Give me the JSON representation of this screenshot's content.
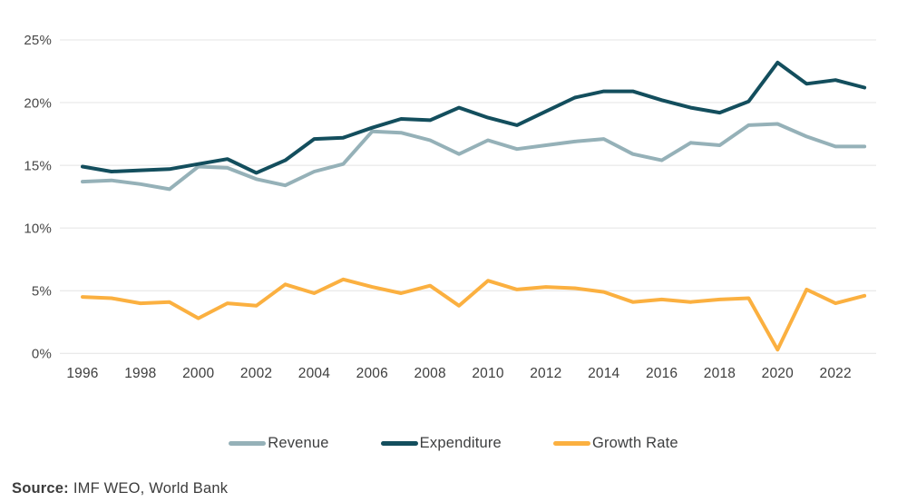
{
  "chart_data": {
    "type": "line",
    "title": "",
    "xlabel": "",
    "ylabel": "",
    "x": [
      1996,
      1997,
      1998,
      1999,
      2000,
      2001,
      2002,
      2003,
      2004,
      2005,
      2006,
      2007,
      2008,
      2009,
      2010,
      2011,
      2012,
      2013,
      2014,
      2015,
      2016,
      2017,
      2018,
      2019,
      2020,
      2021,
      2022,
      2023
    ],
    "series": [
      {
        "name": "Revenue",
        "color": "#95b1b8",
        "values": [
          13.7,
          13.8,
          13.5,
          13.1,
          14.9,
          14.8,
          13.9,
          13.4,
          14.5,
          15.1,
          17.7,
          17.6,
          17.0,
          15.9,
          17.0,
          16.3,
          16.6,
          16.9,
          17.1,
          15.9,
          15.4,
          16.8,
          16.6,
          18.2,
          18.3,
          17.3,
          16.5,
          16.5
        ]
      },
      {
        "name": "Expenditure",
        "color": "#134e5d",
        "values": [
          14.9,
          14.5,
          14.6,
          14.7,
          15.1,
          15.5,
          14.4,
          15.4,
          17.1,
          17.2,
          18.0,
          18.7,
          18.6,
          19.6,
          18.8,
          18.2,
          19.3,
          20.4,
          20.9,
          20.9,
          20.2,
          19.6,
          19.2,
          20.1,
          23.2,
          21.5,
          21.8,
          21.2
        ]
      },
      {
        "name": "Growth Rate",
        "color": "#fbb040",
        "values": [
          4.5,
          4.4,
          4.0,
          4.1,
          2.8,
          4.0,
          3.8,
          5.5,
          4.8,
          5.9,
          5.3,
          4.8,
          5.4,
          3.8,
          5.8,
          5.1,
          5.3,
          5.2,
          4.9,
          4.1,
          4.3,
          4.1,
          4.3,
          4.4,
          0.3,
          5.1,
          4.0,
          4.6
        ]
      }
    ],
    "ylim": [
      0,
      25
    ],
    "yticks": [
      0,
      5,
      10,
      15,
      20,
      25
    ],
    "ytick_labels": [
      "0%",
      "5%",
      "10%",
      "15%",
      "20%",
      "25%"
    ],
    "xtick_years": [
      1996,
      1998,
      2000,
      2002,
      2004,
      2006,
      2008,
      2010,
      2012,
      2014,
      2016,
      2018,
      2020,
      2022
    ],
    "grid": "horizontal",
    "gridline_color": "#e4e4e4",
    "ytick_label_color": "#474747",
    "xtick_label_color": "#3e3e3e",
    "legend_position": "bottom-center"
  },
  "source": {
    "label": "Source:",
    "text": "IMF WEO, World Bank"
  }
}
